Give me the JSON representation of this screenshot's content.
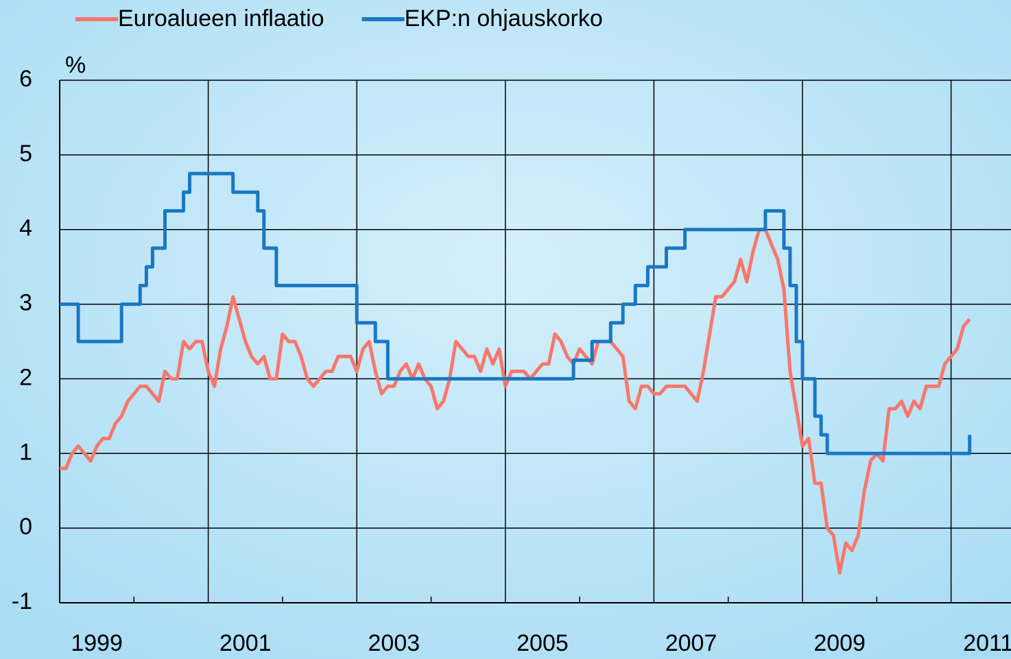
{
  "chart_data": {
    "type": "line",
    "y_unit_label": "%",
    "x": [
      1999.0,
      1999.083,
      1999.167,
      1999.25,
      1999.333,
      1999.417,
      1999.5,
      1999.583,
      1999.667,
      1999.75,
      1999.833,
      1999.917,
      2000.0,
      2000.083,
      2000.167,
      2000.25,
      2000.333,
      2000.417,
      2000.5,
      2000.583,
      2000.667,
      2000.75,
      2000.833,
      2000.917,
      2001.0,
      2001.083,
      2001.167,
      2001.25,
      2001.333,
      2001.417,
      2001.5,
      2001.583,
      2001.667,
      2001.75,
      2001.833,
      2001.917,
      2002.0,
      2002.083,
      2002.167,
      2002.25,
      2002.333,
      2002.417,
      2002.5,
      2002.583,
      2002.667,
      2002.75,
      2002.833,
      2002.917,
      2003.0,
      2003.083,
      2003.167,
      2003.25,
      2003.333,
      2003.417,
      2003.5,
      2003.583,
      2003.667,
      2003.75,
      2003.833,
      2003.917,
      2004.0,
      2004.083,
      2004.167,
      2004.25,
      2004.333,
      2004.417,
      2004.5,
      2004.583,
      2004.667,
      2004.75,
      2004.833,
      2004.917,
      2005.0,
      2005.083,
      2005.167,
      2005.25,
      2005.333,
      2005.417,
      2005.5,
      2005.583,
      2005.667,
      2005.75,
      2005.833,
      2005.917,
      2006.0,
      2006.083,
      2006.167,
      2006.25,
      2006.333,
      2006.417,
      2006.5,
      2006.583,
      2006.667,
      2006.75,
      2006.833,
      2006.917,
      2007.0,
      2007.083,
      2007.167,
      2007.25,
      2007.333,
      2007.417,
      2007.5,
      2007.583,
      2007.667,
      2007.75,
      2007.833,
      2007.917,
      2008.0,
      2008.083,
      2008.167,
      2008.25,
      2008.333,
      2008.417,
      2008.5,
      2008.583,
      2008.667,
      2008.75,
      2008.833,
      2008.917,
      2009.0,
      2009.083,
      2009.167,
      2009.25,
      2009.333,
      2009.417,
      2009.5,
      2009.583,
      2009.667,
      2009.75,
      2009.833,
      2009.917,
      2010.0,
      2010.083,
      2010.167,
      2010.25,
      2010.333,
      2010.417,
      2010.5,
      2010.583,
      2010.667,
      2010.75,
      2010.833,
      2010.917,
      2011.0,
      2011.083,
      2011.167,
      2011.25
    ],
    "series": [
      {
        "name": "Euroalueen inflaatio",
        "color": "#f8776c",
        "step": false,
        "values": [
          0.8,
          0.8,
          1.0,
          1.1,
          1.0,
          0.9,
          1.1,
          1.2,
          1.2,
          1.4,
          1.5,
          1.7,
          1.8,
          1.9,
          1.9,
          1.8,
          1.7,
          2.1,
          2.0,
          2.0,
          2.5,
          2.4,
          2.5,
          2.5,
          2.1,
          1.9,
          2.4,
          2.7,
          3.1,
          2.8,
          2.5,
          2.3,
          2.2,
          2.3,
          2.0,
          2.0,
          2.6,
          2.5,
          2.5,
          2.3,
          2.0,
          1.9,
          2.0,
          2.1,
          2.1,
          2.3,
          2.3,
          2.3,
          2.1,
          2.4,
          2.5,
          2.1,
          1.8,
          1.9,
          1.9,
          2.1,
          2.2,
          2.0,
          2.2,
          2.0,
          1.9,
          1.6,
          1.7,
          2.0,
          2.5,
          2.4,
          2.3,
          2.3,
          2.1,
          2.4,
          2.2,
          2.4,
          1.9,
          2.1,
          2.1,
          2.1,
          2.0,
          2.1,
          2.2,
          2.2,
          2.6,
          2.5,
          2.3,
          2.2,
          2.4,
          2.3,
          2.2,
          2.5,
          2.5,
          2.5,
          2.4,
          2.3,
          1.7,
          1.6,
          1.9,
          1.9,
          1.8,
          1.8,
          1.9,
          1.9,
          1.9,
          1.9,
          1.8,
          1.7,
          2.1,
          2.6,
          3.1,
          3.1,
          3.2,
          3.3,
          3.6,
          3.3,
          3.7,
          4.0,
          4.0,
          3.8,
          3.6,
          3.2,
          2.1,
          1.6,
          1.1,
          1.2,
          0.6,
          0.6,
          0.0,
          -0.1,
          -0.6,
          -0.2,
          -0.3,
          -0.1,
          0.5,
          0.9,
          1.0,
          0.9,
          1.6,
          1.6,
          1.7,
          1.5,
          1.7,
          1.6,
          1.9,
          1.9,
          1.9,
          2.2,
          2.3,
          2.4,
          2.7,
          2.8
        ]
      },
      {
        "name": "EKP:n ohjauskorko",
        "color": "#1a78c2",
        "step": true,
        "values": [
          3.0,
          3.0,
          3.0,
          2.5,
          2.5,
          2.5,
          2.5,
          2.5,
          2.5,
          2.5,
          3.0,
          3.0,
          3.0,
          3.25,
          3.5,
          3.75,
          3.75,
          4.25,
          4.25,
          4.25,
          4.5,
          4.75,
          4.75,
          4.75,
          4.75,
          4.75,
          4.75,
          4.75,
          4.5,
          4.5,
          4.5,
          4.5,
          4.25,
          3.75,
          3.75,
          3.25,
          3.25,
          3.25,
          3.25,
          3.25,
          3.25,
          3.25,
          3.25,
          3.25,
          3.25,
          3.25,
          3.25,
          3.25,
          2.75,
          2.75,
          2.75,
          2.5,
          2.5,
          2.0,
          2.0,
          2.0,
          2.0,
          2.0,
          2.0,
          2.0,
          2.0,
          2.0,
          2.0,
          2.0,
          2.0,
          2.0,
          2.0,
          2.0,
          2.0,
          2.0,
          2.0,
          2.0,
          2.0,
          2.0,
          2.0,
          2.0,
          2.0,
          2.0,
          2.0,
          2.0,
          2.0,
          2.0,
          2.0,
          2.25,
          2.25,
          2.25,
          2.5,
          2.5,
          2.5,
          2.75,
          2.75,
          3.0,
          3.0,
          3.25,
          3.25,
          3.5,
          3.5,
          3.5,
          3.75,
          3.75,
          3.75,
          4.0,
          4.0,
          4.0,
          4.0,
          4.0,
          4.0,
          4.0,
          4.0,
          4.0,
          4.0,
          4.0,
          4.0,
          4.0,
          4.25,
          4.25,
          4.25,
          3.75,
          3.25,
          2.5,
          2.0,
          2.0,
          1.5,
          1.25,
          1.0,
          1.0,
          1.0,
          1.0,
          1.0,
          1.0,
          1.0,
          1.0,
          1.0,
          1.0,
          1.0,
          1.0,
          1.0,
          1.0,
          1.0,
          1.0,
          1.0,
          1.0,
          1.0,
          1.0,
          1.0,
          1.0,
          1.0,
          1.25
        ]
      }
    ],
    "xlim": [
      1999,
      2011.807
    ],
    "xticks": [
      {
        "value": 1999.5,
        "label": "1999"
      },
      {
        "value": 2001.5,
        "label": "2001"
      },
      {
        "value": 2003.5,
        "label": "2003"
      },
      {
        "value": 2005.5,
        "label": "2005"
      },
      {
        "value": 2007.5,
        "label": "2007"
      },
      {
        "value": 2009.5,
        "label": "2009"
      },
      {
        "value": 2011.5,
        "label": "2011"
      }
    ],
    "x_gridlines": [
      2001,
      2003,
      2005,
      2007,
      2009,
      2011
    ],
    "x_minor_ticks": [
      2000,
      2002,
      2004,
      2006,
      2008,
      2010
    ],
    "ylim": [
      -1,
      6
    ],
    "yticks": [
      -1,
      0,
      1,
      2,
      3,
      4,
      5,
      6
    ],
    "grid": true,
    "legend": "top"
  }
}
